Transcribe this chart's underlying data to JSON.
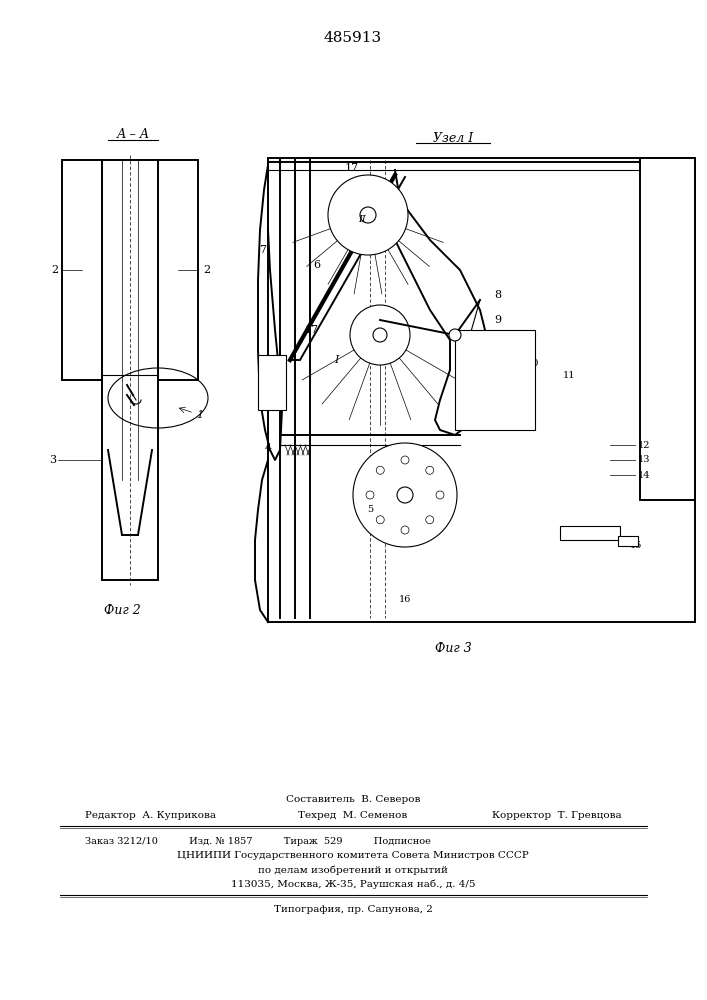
{
  "title": "485913",
  "bg_color": "#ffffff",
  "fig2_label": "Фиг 2",
  "fig3_label": "Фиг 3",
  "section_label": "А – А",
  "node_label": "Узел I",
  "footer_line1_center": "Составитель  В. Северов",
  "footer_col1_label": "Редактор  А. Куприкова",
  "footer_col2_label": "Техред  М. Семенов",
  "footer_col3_label": "Корректор  Т. Гревцова",
  "footer_line3": "Заказ 3212/10          Изд. № 1857          Тираж  529          Подписное",
  "footer_line4": "ЦНИИПИ Государственного комитета Совета Министров СССР",
  "footer_line5": "по делам изобретений и открытий",
  "footer_line6": "113035, Москва, Ж-35, Раушская наб., д. 4/5",
  "footer_line7": "Типография, пр. Сапунова, 2"
}
